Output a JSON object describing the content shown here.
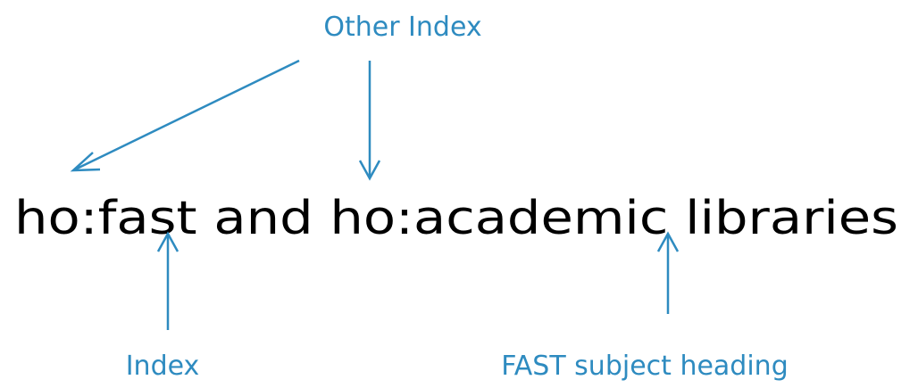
{
  "labels": {
    "other_index": "Other Index",
    "index": "Index",
    "fast_heading": "FAST subject heading"
  },
  "query": "ho:fast and ho:academic libraries"
}
